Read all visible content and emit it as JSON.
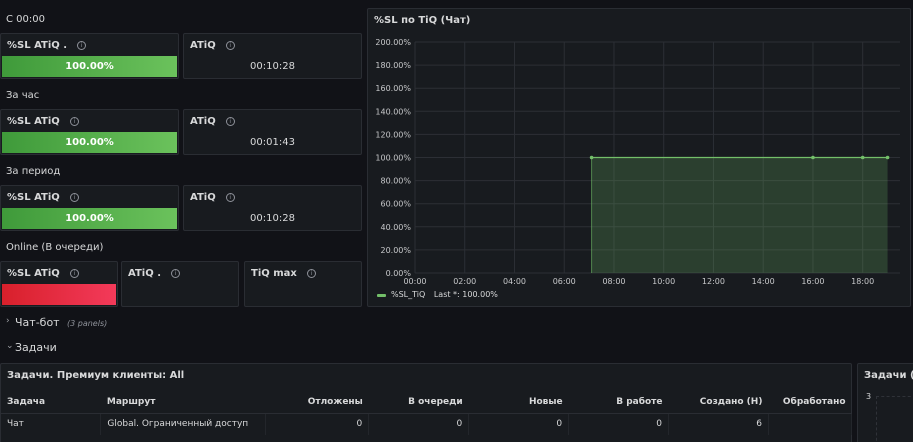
{
  "sections": {
    "since_midnight": "С 00:00",
    "per_hour": "За час",
    "per_period": "За период",
    "online": "Online (В очереди)"
  },
  "since_midnight": {
    "sl_title": "%SL ATiQ .",
    "sl_value": "100.00%",
    "atiq_title": "ATiQ",
    "atiq_value": "00:10:28"
  },
  "per_hour": {
    "sl_title": "%SL ATiQ",
    "sl_value": "100.00%",
    "atiq_title": "ATiQ",
    "atiq_value": "00:01:43"
  },
  "per_period": {
    "sl_title": "%SL ATiQ",
    "sl_value": "100.00%",
    "atiq_title": "ATiQ",
    "atiq_value": "00:10:28"
  },
  "online": {
    "sl_title": "%SL ATiQ",
    "atiq_title": "ATiQ .",
    "tiqmax_title": "TiQ max"
  },
  "info_glyph": "i",
  "chart_panel": {
    "title": "%SL по TiQ (Чат)",
    "legend_label": "%SL_TiQ",
    "legend_last": "Last *: 100.00%"
  },
  "chart_data": {
    "type": "area",
    "x_ticks": [
      "00:00",
      "02:00",
      "04:00",
      "06:00",
      "08:00",
      "10:00",
      "12:00",
      "14:00",
      "16:00",
      "18:00"
    ],
    "y_ticks": [
      "0.00%",
      "20.00%",
      "40.00%",
      "60.00%",
      "80.00%",
      "100.00%",
      "120.00%",
      "140.00%",
      "160.00%",
      "180.00%",
      "200.00%"
    ],
    "xlim": [
      0,
      19.5
    ],
    "ylim": [
      0,
      200
    ],
    "grid": true,
    "legend": "bottom-left",
    "series": [
      {
        "name": "%SL_TiQ",
        "color": "#73bf69",
        "points": [
          [
            7.1,
            100
          ],
          [
            16.0,
            100
          ],
          [
            18.0,
            100
          ],
          [
            19.0,
            100
          ]
        ]
      }
    ]
  },
  "rows": {
    "chatbot": {
      "label": "Чат-бот",
      "panels": "(3 panels)",
      "chevron": "›"
    },
    "tasks": {
      "label": "Задачи",
      "chevron": "⌄"
    }
  },
  "tasks_table": {
    "title": "Задачи. Премиум клиенты: All",
    "columns": [
      "Задача",
      "Маршрут",
      "Отложены",
      "В очереди",
      "Новые",
      "В работе",
      "Создано (Н)",
      "Обработано"
    ],
    "rows": [
      [
        "Чат",
        "Global. Ограниченный доступ",
        "0",
        "0",
        "0",
        "0",
        "6",
        ""
      ]
    ]
  },
  "side_panel": {
    "title": "Задачи (Ча",
    "axis_value": "3"
  }
}
